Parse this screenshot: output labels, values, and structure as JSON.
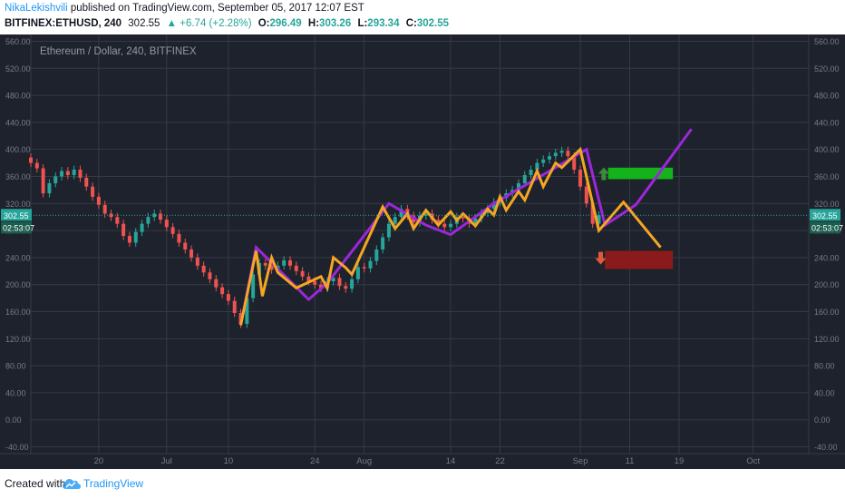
{
  "header": {
    "author": "NikaLekishvili",
    "published_text": " published on TradingView.com, September 05, 2017 12:07 EST",
    "symbol": "BITFINEX:ETHUSD, 240",
    "last": "302.55",
    "change": "▲ +6.74 (+2.28%)",
    "o_label": "O:",
    "o_value": "296.49",
    "h_label": "H:",
    "h_value": "303.26",
    "l_label": "L:",
    "l_value": "293.34",
    "c_label": "C:",
    "c_value": "302.55"
  },
  "footer": {
    "created_with": "Created with",
    "brand": "TradingView",
    "logo_icon": "tradingview-cloud-icon"
  },
  "colors": {
    "background": "#1e222d",
    "grid": "#363a45",
    "axis_text": "#787b86",
    "candle_up": "#26a69a",
    "candle_down": "#ef5350",
    "purple": "#9c27d9",
    "orange": "#f5a623",
    "green_zone": "#14b31b",
    "red_zone": "#8b1a1a",
    "arrow_up": "#3c8a3c",
    "arrow_down": "#e05a3a",
    "price_line": "#26a69a"
  },
  "chart_data": {
    "type": "candlestick",
    "title": "Ethereum / Dollar, 240, BITFINEX",
    "ylim": [
      -50,
      570
    ],
    "y_ticks": [
      560,
      520,
      480,
      440,
      400,
      360,
      320,
      280,
      240,
      200,
      160,
      120,
      80,
      40,
      0,
      -40
    ],
    "y_tick_labels": [
      "560.00",
      "520.00",
      "480.00",
      "440.00",
      "400.00",
      "360.00",
      "320.00",
      "280.00",
      "240.00",
      "200.00",
      "160.00",
      "120.00",
      "80.00",
      "40.00",
      "0.00",
      "-40.00"
    ],
    "x_tick_labels": [
      "20",
      "Jul",
      "10",
      "24",
      "Aug",
      "14",
      "22",
      "Sep",
      "11",
      "19",
      "Oct"
    ],
    "x_tick_pos": [
      19,
      30,
      40,
      54,
      62,
      76,
      84,
      97,
      105,
      113,
      125
    ],
    "xlim": [
      8,
      134
    ],
    "last_price": 302.55,
    "price_label": "302.55",
    "countdown_label": "02:53:07",
    "candles_close": [
      [
        8,
        380
      ],
      [
        9,
        372
      ],
      [
        10,
        335
      ],
      [
        11,
        350
      ],
      [
        12,
        360
      ],
      [
        13,
        368
      ],
      [
        14,
        362
      ],
      [
        15,
        370
      ],
      [
        16,
        358
      ],
      [
        17,
        345
      ],
      [
        18,
        330
      ],
      [
        19,
        318
      ],
      [
        20,
        305
      ],
      [
        21,
        300
      ],
      [
        22,
        290
      ],
      [
        23,
        272
      ],
      [
        24,
        262
      ],
      [
        25,
        278
      ],
      [
        26,
        290
      ],
      [
        27,
        300
      ],
      [
        28,
        305
      ],
      [
        29,
        296
      ],
      [
        30,
        285
      ],
      [
        31,
        275
      ],
      [
        32,
        262
      ],
      [
        33,
        252
      ],
      [
        34,
        240
      ],
      [
        35,
        228
      ],
      [
        36,
        218
      ],
      [
        37,
        208
      ],
      [
        38,
        196
      ],
      [
        39,
        186
      ],
      [
        40,
        176
      ],
      [
        41,
        158
      ],
      [
        42,
        142
      ],
      [
        43,
        180
      ],
      [
        44,
        215
      ],
      [
        45,
        232
      ],
      [
        46,
        228
      ],
      [
        47,
        222
      ],
      [
        48,
        228
      ],
      [
        49,
        236
      ],
      [
        50,
        228
      ],
      [
        51,
        220
      ],
      [
        52,
        212
      ],
      [
        53,
        205
      ],
      [
        54,
        200
      ],
      [
        55,
        195
      ],
      [
        56,
        205
      ],
      [
        57,
        210
      ],
      [
        58,
        198
      ],
      [
        59,
        194
      ],
      [
        60,
        208
      ],
      [
        61,
        226
      ],
      [
        62,
        224
      ],
      [
        63,
        235
      ],
      [
        64,
        252
      ],
      [
        65,
        270
      ],
      [
        66,
        290
      ],
      [
        67,
        300
      ],
      [
        68,
        312
      ],
      [
        69,
        302
      ],
      [
        70,
        292
      ],
      [
        71,
        302
      ],
      [
        72,
        305
      ],
      [
        73,
        296
      ],
      [
        74,
        290
      ],
      [
        75,
        285
      ],
      [
        76,
        290
      ],
      [
        77,
        300
      ],
      [
        78,
        298
      ],
      [
        79,
        290
      ],
      [
        80,
        298
      ],
      [
        81,
        306
      ],
      [
        82,
        312
      ],
      [
        83,
        322
      ],
      [
        84,
        328
      ],
      [
        85,
        335
      ],
      [
        86,
        340
      ],
      [
        87,
        350
      ],
      [
        88,
        362
      ],
      [
        89,
        370
      ],
      [
        90,
        380
      ],
      [
        91,
        385
      ],
      [
        92,
        390
      ],
      [
        93,
        395
      ],
      [
        94,
        398
      ],
      [
        95,
        390
      ],
      [
        96,
        370
      ],
      [
        97,
        345
      ],
      [
        98,
        320
      ],
      [
        99,
        290
      ],
      [
        100,
        302.55
      ]
    ],
    "candles_dir": [
      "d",
      "d",
      "u",
      "u",
      "u",
      "d",
      "u",
      "d",
      "d",
      "d",
      "d",
      "d",
      "d",
      "d",
      "d",
      "d",
      "u",
      "u",
      "u",
      "u",
      "d",
      "d",
      "d",
      "d",
      "d",
      "d",
      "d",
      "d",
      "d",
      "d",
      "d",
      "d",
      "d",
      "d",
      "u",
      "u",
      "u",
      "d",
      "d",
      "u",
      "u",
      "d",
      "d",
      "d",
      "d",
      "d",
      "d",
      "u",
      "u",
      "d",
      "d",
      "u",
      "u",
      "d",
      "u",
      "u",
      "u",
      "u",
      "u",
      "u",
      "d",
      "d",
      "u",
      "u",
      "d",
      "d",
      "d",
      "u",
      "u",
      "d",
      "d",
      "u",
      "u",
      "u",
      "u",
      "u",
      "u",
      "u",
      "u",
      "u",
      "u",
      "u",
      "u",
      "u",
      "u",
      "u",
      "d",
      "d",
      "d",
      "d",
      "d",
      "u",
      "u"
    ],
    "series": [
      {
        "color": "purple",
        "points": [
          [
            42,
            140
          ],
          [
            44.5,
            255
          ],
          [
            53,
            178
          ],
          [
            56,
            202
          ],
          [
            66,
            320
          ],
          [
            72,
            288
          ],
          [
            76,
            274
          ],
          [
            83,
            320
          ],
          [
            98,
            400
          ],
          [
            101,
            288
          ],
          [
            106,
            318
          ],
          [
            115,
            430
          ]
        ]
      },
      {
        "color": "orange",
        "points": [
          [
            42,
            140
          ],
          [
            44.5,
            250
          ],
          [
            45.5,
            183
          ],
          [
            47,
            240
          ],
          [
            48,
            218
          ],
          [
            51,
            195
          ],
          [
            55,
            212
          ],
          [
            56,
            195
          ],
          [
            57,
            240
          ],
          [
            59,
            225
          ],
          [
            60,
            215
          ],
          [
            65,
            315
          ],
          [
            67,
            283
          ],
          [
            69,
            305
          ],
          [
            70,
            283
          ],
          [
            72,
            310
          ],
          [
            74,
            288
          ],
          [
            76,
            308
          ],
          [
            77,
            295
          ],
          [
            78,
            305
          ],
          [
            80,
            287
          ],
          [
            82,
            312
          ],
          [
            83,
            303
          ],
          [
            84,
            330
          ],
          [
            85,
            310
          ],
          [
            87,
            338
          ],
          [
            88,
            325
          ],
          [
            90,
            368
          ],
          [
            91,
            345
          ],
          [
            93,
            380
          ],
          [
            94,
            373
          ],
          [
            97,
            400
          ],
          [
            100,
            280
          ],
          [
            104,
            322
          ],
          [
            110,
            255
          ]
        ]
      }
    ],
    "zones": [
      {
        "color": "green_zone",
        "x1": 101.5,
        "x2": 112,
        "y1": 373,
        "y2": 356
      },
      {
        "color": "red_zone",
        "x1": 101,
        "x2": 112,
        "y1": 250,
        "y2": 223
      }
    ],
    "arrows": [
      {
        "dir": "up",
        "x": 100.8,
        "y": 364
      },
      {
        "dir": "down",
        "x": 100.3,
        "y": 239
      }
    ]
  }
}
